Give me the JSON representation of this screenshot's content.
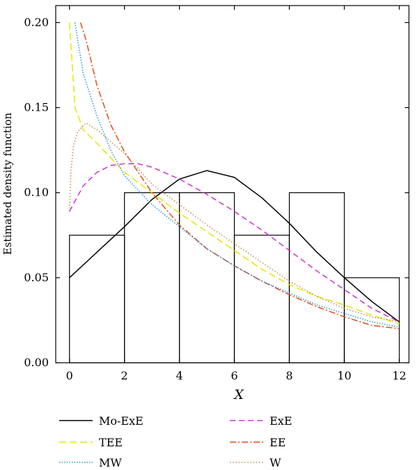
{
  "chart_data": {
    "type": "line",
    "title": "",
    "xlabel": "X",
    "ylabel": "Estimated density function",
    "xlim": [
      -0.5,
      12.35
    ],
    "ylim": [
      0,
      0.21
    ],
    "xticks": [
      0,
      2,
      4,
      6,
      8,
      10,
      12
    ],
    "xtick_labels": [
      "0",
      "2",
      "4",
      "6",
      "8",
      "10",
      "12"
    ],
    "yticks": [
      0,
      0.05,
      0.1,
      0.15,
      0.2
    ],
    "ytick_labels": [
      "0.00",
      "0.05",
      "0.10",
      "0.15",
      "0.20"
    ],
    "grid": false,
    "legend_position": "bottom",
    "histogram": {
      "bin_edges": [
        0,
        2,
        4,
        6,
        8,
        10,
        12
      ],
      "heights": [
        0.075,
        0.1,
        0.1,
        0.075,
        0.1,
        0.05
      ]
    },
    "series": [
      {
        "name": "Mo-ExE",
        "color": "#000000",
        "dash": "solid",
        "x": [
          0,
          1,
          2,
          3,
          4,
          5,
          6,
          7,
          8,
          9,
          10,
          11,
          12
        ],
        "y": [
          0.05,
          0.065,
          0.08,
          0.096,
          0.108,
          0.113,
          0.109,
          0.097,
          0.082,
          0.065,
          0.05,
          0.036,
          0.024
        ]
      },
      {
        "name": "ExE",
        "color": "#cc33cc",
        "dash": "dashed",
        "x": [
          0,
          0.5,
          1,
          1.5,
          2,
          2.5,
          3,
          4,
          5,
          6,
          7,
          8,
          9,
          10,
          11,
          12
        ],
        "y": [
          0.089,
          0.104,
          0.112,
          0.116,
          0.117,
          0.117,
          0.115,
          0.108,
          0.099,
          0.089,
          0.078,
          0.066,
          0.054,
          0.043,
          0.032,
          0.024
        ]
      },
      {
        "name": "TEE",
        "color": "#e6e600",
        "dash": "longdash",
        "x": [
          0,
          0.2,
          0.5,
          1,
          2,
          3,
          4,
          5,
          6,
          7,
          8,
          9,
          10,
          11,
          12
        ],
        "y": [
          0.2,
          0.15,
          0.137,
          0.129,
          0.112,
          0.1,
          0.088,
          0.077,
          0.066,
          0.055,
          0.046,
          0.039,
          0.034,
          0.028,
          0.023
        ]
      },
      {
        "name": "EE",
        "color": "#e64a19",
        "dash": "dashdot",
        "x": [
          0.4,
          0.6,
          1,
          1.5,
          2,
          3,
          4,
          5,
          6,
          7,
          8,
          9,
          10,
          11,
          12
        ],
        "y": [
          0.2,
          0.19,
          0.163,
          0.14,
          0.124,
          0.1,
          0.081,
          0.067,
          0.057,
          0.048,
          0.04,
          0.033,
          0.027,
          0.022,
          0.02
        ]
      },
      {
        "name": "MW",
        "color": "#1a8fcc",
        "dash": "dotted",
        "x": [
          0.2,
          0.5,
          1,
          1.5,
          2,
          3,
          4,
          5,
          6,
          7,
          8,
          9,
          10,
          11,
          12
        ],
        "y": [
          0.2,
          0.17,
          0.145,
          0.125,
          0.11,
          0.093,
          0.08,
          0.067,
          0.057,
          0.048,
          0.041,
          0.034,
          0.029,
          0.024,
          0.021
        ]
      },
      {
        "name": "W",
        "color": "#b07030",
        "dash": "densedot",
        "x": [
          0,
          0.05,
          0.15,
          0.3,
          0.6,
          1,
          1.5,
          2,
          3,
          4,
          5,
          6,
          7,
          8,
          9,
          10,
          11,
          12
        ],
        "y": [
          0.089,
          0.112,
          0.128,
          0.136,
          0.141,
          0.137,
          0.13,
          0.123,
          0.105,
          0.093,
          0.081,
          0.07,
          0.059,
          0.048,
          0.039,
          0.032,
          0.027,
          0.024
        ]
      }
    ]
  }
}
